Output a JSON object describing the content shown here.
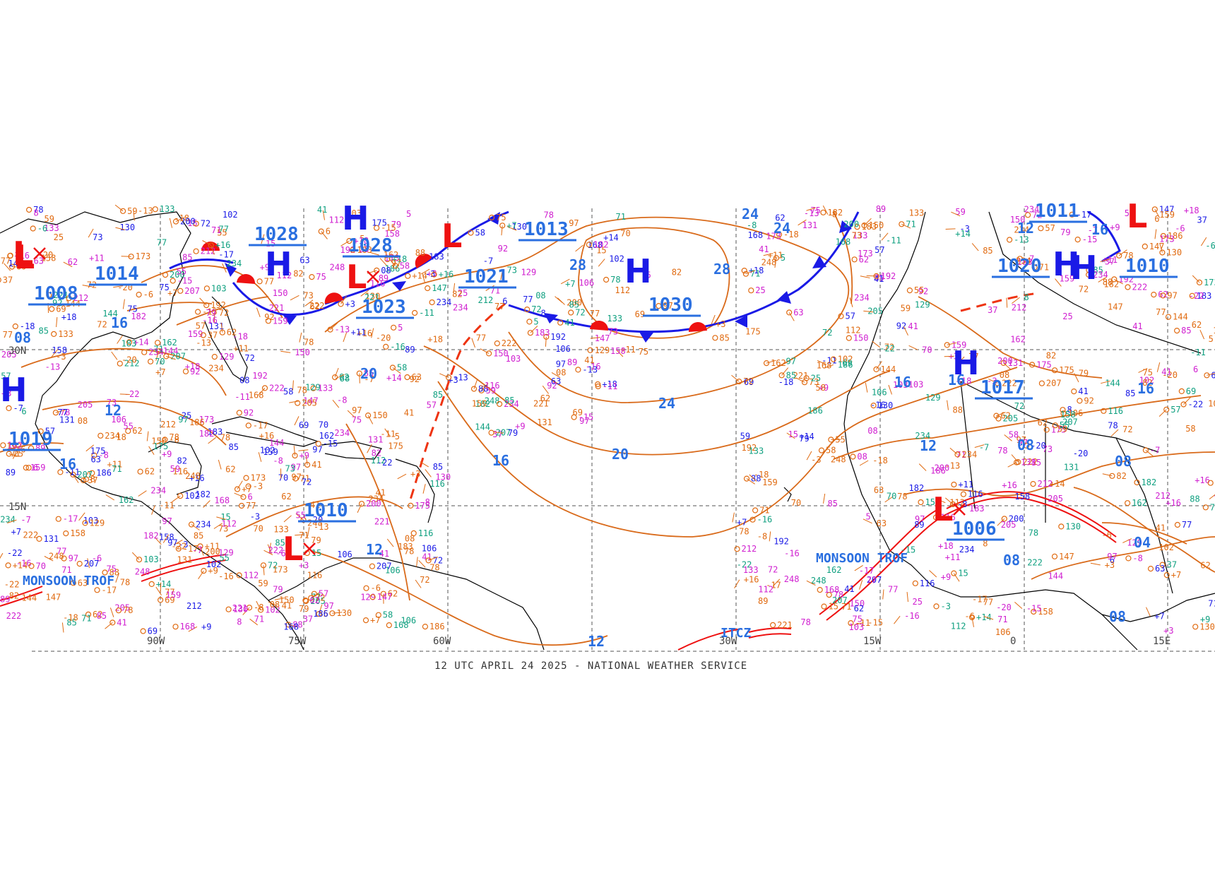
{
  "caption": "12 UTC APRIL 24 2025 - NATIONAL WEATHER SERVICE",
  "colors": {
    "isobar": "#d96a1a",
    "pressure_label": "#2a6fe0",
    "high": "#1a1ae6",
    "low": "#ee1111",
    "cold_front": "#1a1ae6",
    "warm_front": "#ee1111",
    "trough": "#ee3311",
    "coast": "#000000",
    "grid": "#555555"
  },
  "grid_labels": {
    "longitudes": [
      "90W",
      "75W",
      "60W",
      "30W",
      "15W",
      "0",
      "15E"
    ],
    "latitudes": [
      "30N",
      "15N"
    ]
  },
  "pressure_centers": [
    {
      "type": "H",
      "label": "1028"
    },
    {
      "type": "H",
      "label": "1030"
    },
    {
      "type": "H",
      "label": "1017"
    },
    {
      "type": "H",
      "label": "1020"
    },
    {
      "type": "L",
      "label": "1023"
    },
    {
      "type": "L",
      "label": "1010"
    },
    {
      "type": "L",
      "label": "1006"
    },
    {
      "type": "L",
      "label": "1008"
    }
  ],
  "pressure_labels": [
    "1028",
    "1028",
    "1013",
    "1021",
    "1023",
    "1030",
    "1014",
    "1008",
    "1019",
    "1010",
    "1011",
    "1020",
    "1010",
    "1017",
    "1006"
  ],
  "isobar_labels": [
    "28",
    "28",
    "24",
    "24",
    "24",
    "20",
    "20",
    "16",
    "16",
    "16",
    "16",
    "16",
    "16",
    "16",
    "12",
    "12",
    "12",
    "12",
    "12",
    "08",
    "08",
    "08",
    "08",
    "08",
    "04"
  ],
  "features": {
    "monsoon_trof_west": "MONSOON TROF",
    "monsoon_trof_east": "MONSOON TROF",
    "itcz": "ITCZ"
  },
  "obs_samples": [
    "89",
    "+11",
    "71",
    "41",
    "78",
    "72",
    "144",
    "159",
    "158",
    "207",
    "234",
    "212",
    "221",
    "70",
    "63",
    "71",
    "248",
    "234",
    "+9",
    "62",
    "78",
    "168",
    "+18",
    "150",
    "6",
    "222",
    "+16",
    "79",
    "116",
    "+14",
    "72",
    "133",
    "130",
    "131",
    "103",
    "85",
    "112",
    "75",
    "129",
    "+7",
    "69",
    "102",
    "73",
    "82",
    "+3",
    "77",
    "92",
    "-13",
    "08",
    "106",
    "97",
    "97",
    "85",
    "77",
    "5",
    "147",
    "-11",
    "162",
    "-17",
    "173",
    "-18",
    "175",
    "-22",
    "186",
    "-20",
    "-8",
    "-6",
    "-3",
    "55",
    "57",
    "62",
    "205",
    "-7",
    "192",
    "200",
    "59",
    "41",
    "58",
    "25",
    "37",
    "-15",
    "183",
    "15",
    "88",
    "182",
    "-16",
    "8"
  ]
}
